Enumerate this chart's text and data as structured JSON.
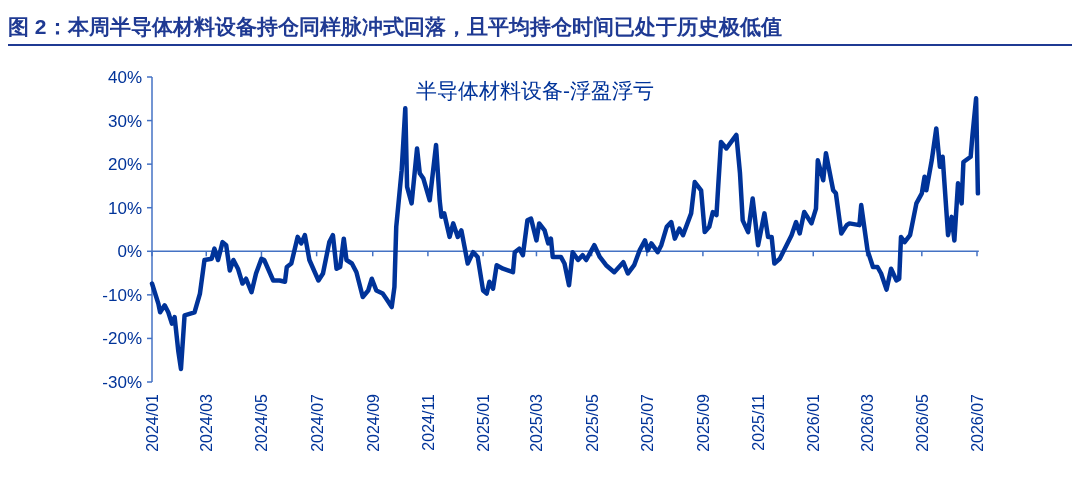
{
  "chart_data": {
    "type": "line",
    "title": "图 2：本周半导体材料设备持仓同样脉冲式回落，且平均持仓时间已处于历史极低值",
    "legend": "top",
    "ref_lines": [
      {
        "axis": "y",
        "value": 0,
        "color": "#4472c4",
        "line_style": "solid"
      }
    ],
    "marker": "none",
    "line_style": "solid",
    "grid": false,
    "xlim": [
      "2024-01-01",
      "2026-07-03"
    ],
    "xticks": [
      {
        "value": "2024-01-01",
        "label": "2024/01"
      },
      {
        "value": "2024-03-01",
        "label": "2024/03"
      },
      {
        "value": "2024-05-01",
        "label": "2024/05"
      },
      {
        "value": "2024-07-01",
        "label": "2024/07"
      },
      {
        "value": "2024-09-01",
        "label": "2024/09"
      },
      {
        "value": "2024-11-01",
        "label": "2024/11"
      },
      {
        "value": "2025-01-01",
        "label": "2025/01"
      },
      {
        "value": "2025-03-01",
        "label": "2025/03"
      },
      {
        "value": "2025-05-01",
        "label": "2025/05"
      },
      {
        "value": "2025-07-01",
        "label": "2025/07"
      },
      {
        "value": "2025-09-01",
        "label": "2025/09"
      },
      {
        "value": "2025-11-01",
        "label": "2025/11"
      },
      {
        "value": "2026-01-01",
        "label": "2026/01"
      },
      {
        "value": "2026-03-01",
        "label": "2026/03"
      },
      {
        "value": "2026-05-01",
        "label": "2026/05"
      },
      {
        "value": "2026-07-01",
        "label": "2026/07"
      }
    ],
    "ylim": [
      -30,
      40
    ],
    "yticks": [
      {
        "value": -30,
        "label": "-30%"
      },
      {
        "value": -20,
        "label": "-20%"
      },
      {
        "value": -10,
        "label": "-10%"
      },
      {
        "value": 0,
        "label": "0%"
      },
      {
        "value": 10,
        "label": "10%"
      },
      {
        "value": 20,
        "label": "20%"
      },
      {
        "value": 30,
        "label": "30%"
      },
      {
        "value": 40,
        "label": "40%"
      }
    ],
    "series": [
      {
        "name": "半导体材料设备-浮盈浮亏",
        "color": "#003399",
        "x": [
          "2024-01-01",
          "2024-01-08",
          "2024-01-10",
          "2024-01-15",
          "2024-01-19",
          "2024-01-23",
          "2024-01-26",
          "2024-01-30",
          "2024-02-02",
          "2024-02-06",
          "2024-02-17",
          "2024-02-23",
          "2024-02-28",
          "2024-03-07",
          "2024-03-10",
          "2024-03-14",
          "2024-03-19",
          "2024-03-23",
          "2024-03-27",
          "2024-03-31",
          "2024-04-05",
          "2024-04-10",
          "2024-04-14",
          "2024-04-20",
          "2024-04-25",
          "2024-05-01",
          "2024-05-04",
          "2024-05-14",
          "2024-05-21",
          "2024-05-27",
          "2024-05-29",
          "2024-06-03",
          "2024-06-10",
          "2024-06-14",
          "2024-06-18",
          "2024-06-23",
          "2024-07-03",
          "2024-07-08",
          "2024-07-15",
          "2024-07-19",
          "2024-07-23",
          "2024-07-27",
          "2024-07-31",
          "2024-08-03",
          "2024-08-09",
          "2024-08-14",
          "2024-08-21",
          "2024-08-27",
          "2024-08-31",
          "2024-09-05",
          "2024-09-12",
          "2024-09-16",
          "2024-09-22",
          "2024-09-25",
          "2024-09-27",
          "2024-10-03",
          "2024-10-07",
          "2024-10-09",
          "2024-10-14",
          "2024-10-20",
          "2024-10-23",
          "2024-10-27",
          "2024-11-03",
          "2024-11-10",
          "2024-11-14",
          "2024-11-16",
          "2024-11-19",
          "2024-11-25",
          "2024-11-29",
          "2024-12-04",
          "2024-12-08",
          "2024-12-15",
          "2024-12-21",
          "2024-12-26",
          "2025-01-01",
          "2025-01-05",
          "2025-01-08",
          "2025-01-12",
          "2025-01-16",
          "2025-01-23",
          "2025-02-03",
          "2025-02-05",
          "2025-02-10",
          "2025-02-14",
          "2025-02-19",
          "2025-02-23",
          "2025-03-01",
          "2025-03-04",
          "2025-03-10",
          "2025-03-14",
          "2025-03-17",
          "2025-03-19",
          "2025-03-28",
          "2025-04-01",
          "2025-04-06",
          "2025-04-10",
          "2025-04-16",
          "2025-04-21",
          "2025-04-25",
          "2025-05-04",
          "2025-05-10",
          "2025-05-17",
          "2025-05-26",
          "2025-06-05",
          "2025-06-10",
          "2025-06-17",
          "2025-06-23",
          "2025-06-29",
          "2025-07-02",
          "2025-07-06",
          "2025-07-13",
          "2025-07-17",
          "2025-07-23",
          "2025-07-28",
          "2025-08-01",
          "2025-08-06",
          "2025-08-10",
          "2025-08-19",
          "2025-08-23",
          "2025-08-30",
          "2025-09-03",
          "2025-09-08",
          "2025-09-12",
          "2025-09-16",
          "2025-09-18",
          "2025-09-21",
          "2025-09-27",
          "2025-10-08",
          "2025-10-12",
          "2025-10-15",
          "2025-10-21",
          "2025-10-26",
          "2025-11-01",
          "2025-11-08",
          "2025-11-12",
          "2025-11-16",
          "2025-11-19",
          "2025-11-25",
          "2025-12-08",
          "2025-12-13",
          "2025-12-17",
          "2025-12-22",
          "2025-12-30",
          "2026-01-04",
          "2026-01-06",
          "2026-01-12",
          "2026-01-15",
          "2026-01-23",
          "2026-01-26",
          "2026-02-01",
          "2026-02-07",
          "2026-02-10",
          "2026-02-21",
          "2026-02-23",
          "2026-03-02",
          "2026-03-08",
          "2026-03-13",
          "2026-03-17",
          "2026-03-23",
          "2026-03-28",
          "2026-04-03",
          "2026-04-06",
          "2026-04-08",
          "2026-04-12",
          "2026-04-18",
          "2026-04-25",
          "2026-05-01",
          "2026-05-04",
          "2026-05-06",
          "2026-05-12",
          "2026-05-17",
          "2026-05-21",
          "2026-05-24",
          "2026-05-30",
          "2026-06-03",
          "2026-06-06",
          "2026-06-10",
          "2026-06-14",
          "2026-06-16",
          "2026-06-24",
          "2026-06-26",
          "2026-06-30",
          "2026-07-02"
        ],
        "values": [
          -7.4,
          -12,
          -14,
          -12.4,
          -14,
          -16.6,
          -15.1,
          -22.8,
          -27,
          -14.7,
          -14,
          -9.7,
          -2,
          -1.7,
          0.6,
          -2,
          2.1,
          1.4,
          -4.4,
          -2,
          -4,
          -7.4,
          -6.3,
          -9.4,
          -5.1,
          -1.7,
          -2,
          -6.7,
          -6.7,
          -7,
          -3.6,
          -2.8,
          3.3,
          1.8,
          3.7,
          -2,
          -6.7,
          -5.1,
          2.1,
          3.7,
          -4,
          -3.6,
          2.9,
          -2,
          -2.8,
          -4.8,
          -10.5,
          -9,
          -6.3,
          -9,
          -9.7,
          -10.9,
          -12.8,
          -8.2,
          5.6,
          18.6,
          32.8,
          14.8,
          11,
          23.6,
          17.9,
          16.7,
          11.7,
          24.4,
          11.7,
          7.9,
          8.7,
          3.3,
          6.4,
          3.3,
          4.8,
          -2.8,
          -0.2,
          -1.3,
          -9,
          -9.7,
          -7,
          -8.6,
          -3.2,
          -4,
          -4.8,
          -0.2,
          0.6,
          -0.9,
          7.1,
          7.5,
          2.5,
          6.4,
          4.8,
          1.8,
          2.9,
          -1.3,
          -1.3,
          -2.8,
          -7.8,
          -0.2,
          -2,
          -0.9,
          -2,
          1.4,
          -1.3,
          -3.2,
          -4.8,
          -2.5,
          -5.1,
          -3.2,
          0.2,
          2.5,
          0.2,
          1.8,
          -0.2,
          1.4,
          5.6,
          6.7,
          2.9,
          5.2,
          3.7,
          8.7,
          15.9,
          14,
          4.4,
          5.6,
          9,
          8.3,
          15.2,
          25.1,
          23.6,
          26.7,
          17.9,
          7.1,
          4.4,
          12.1,
          1.4,
          8.7,
          3.3,
          3.3,
          -2.8,
          -1.7,
          3.7,
          6.7,
          4.1,
          9,
          6.4,
          9.8,
          20.9,
          16.3,
          22.5,
          14,
          13.3,
          4.1,
          6,
          6.4,
          6,
          10.6,
          0.2,
          -3.6,
          -3.6,
          -5.1,
          -8.8,
          -4,
          -6.7,
          -6.3,
          3.3,
          2.1,
          3.7,
          11,
          13.3,
          17.1,
          14,
          20.9,
          28.2,
          19.4,
          21.7,
          3.7,
          7.9,
          2.5,
          15.6,
          11,
          20.5,
          21.7,
          26.7,
          35.1,
          13.3
        ]
      }
    ]
  }
}
